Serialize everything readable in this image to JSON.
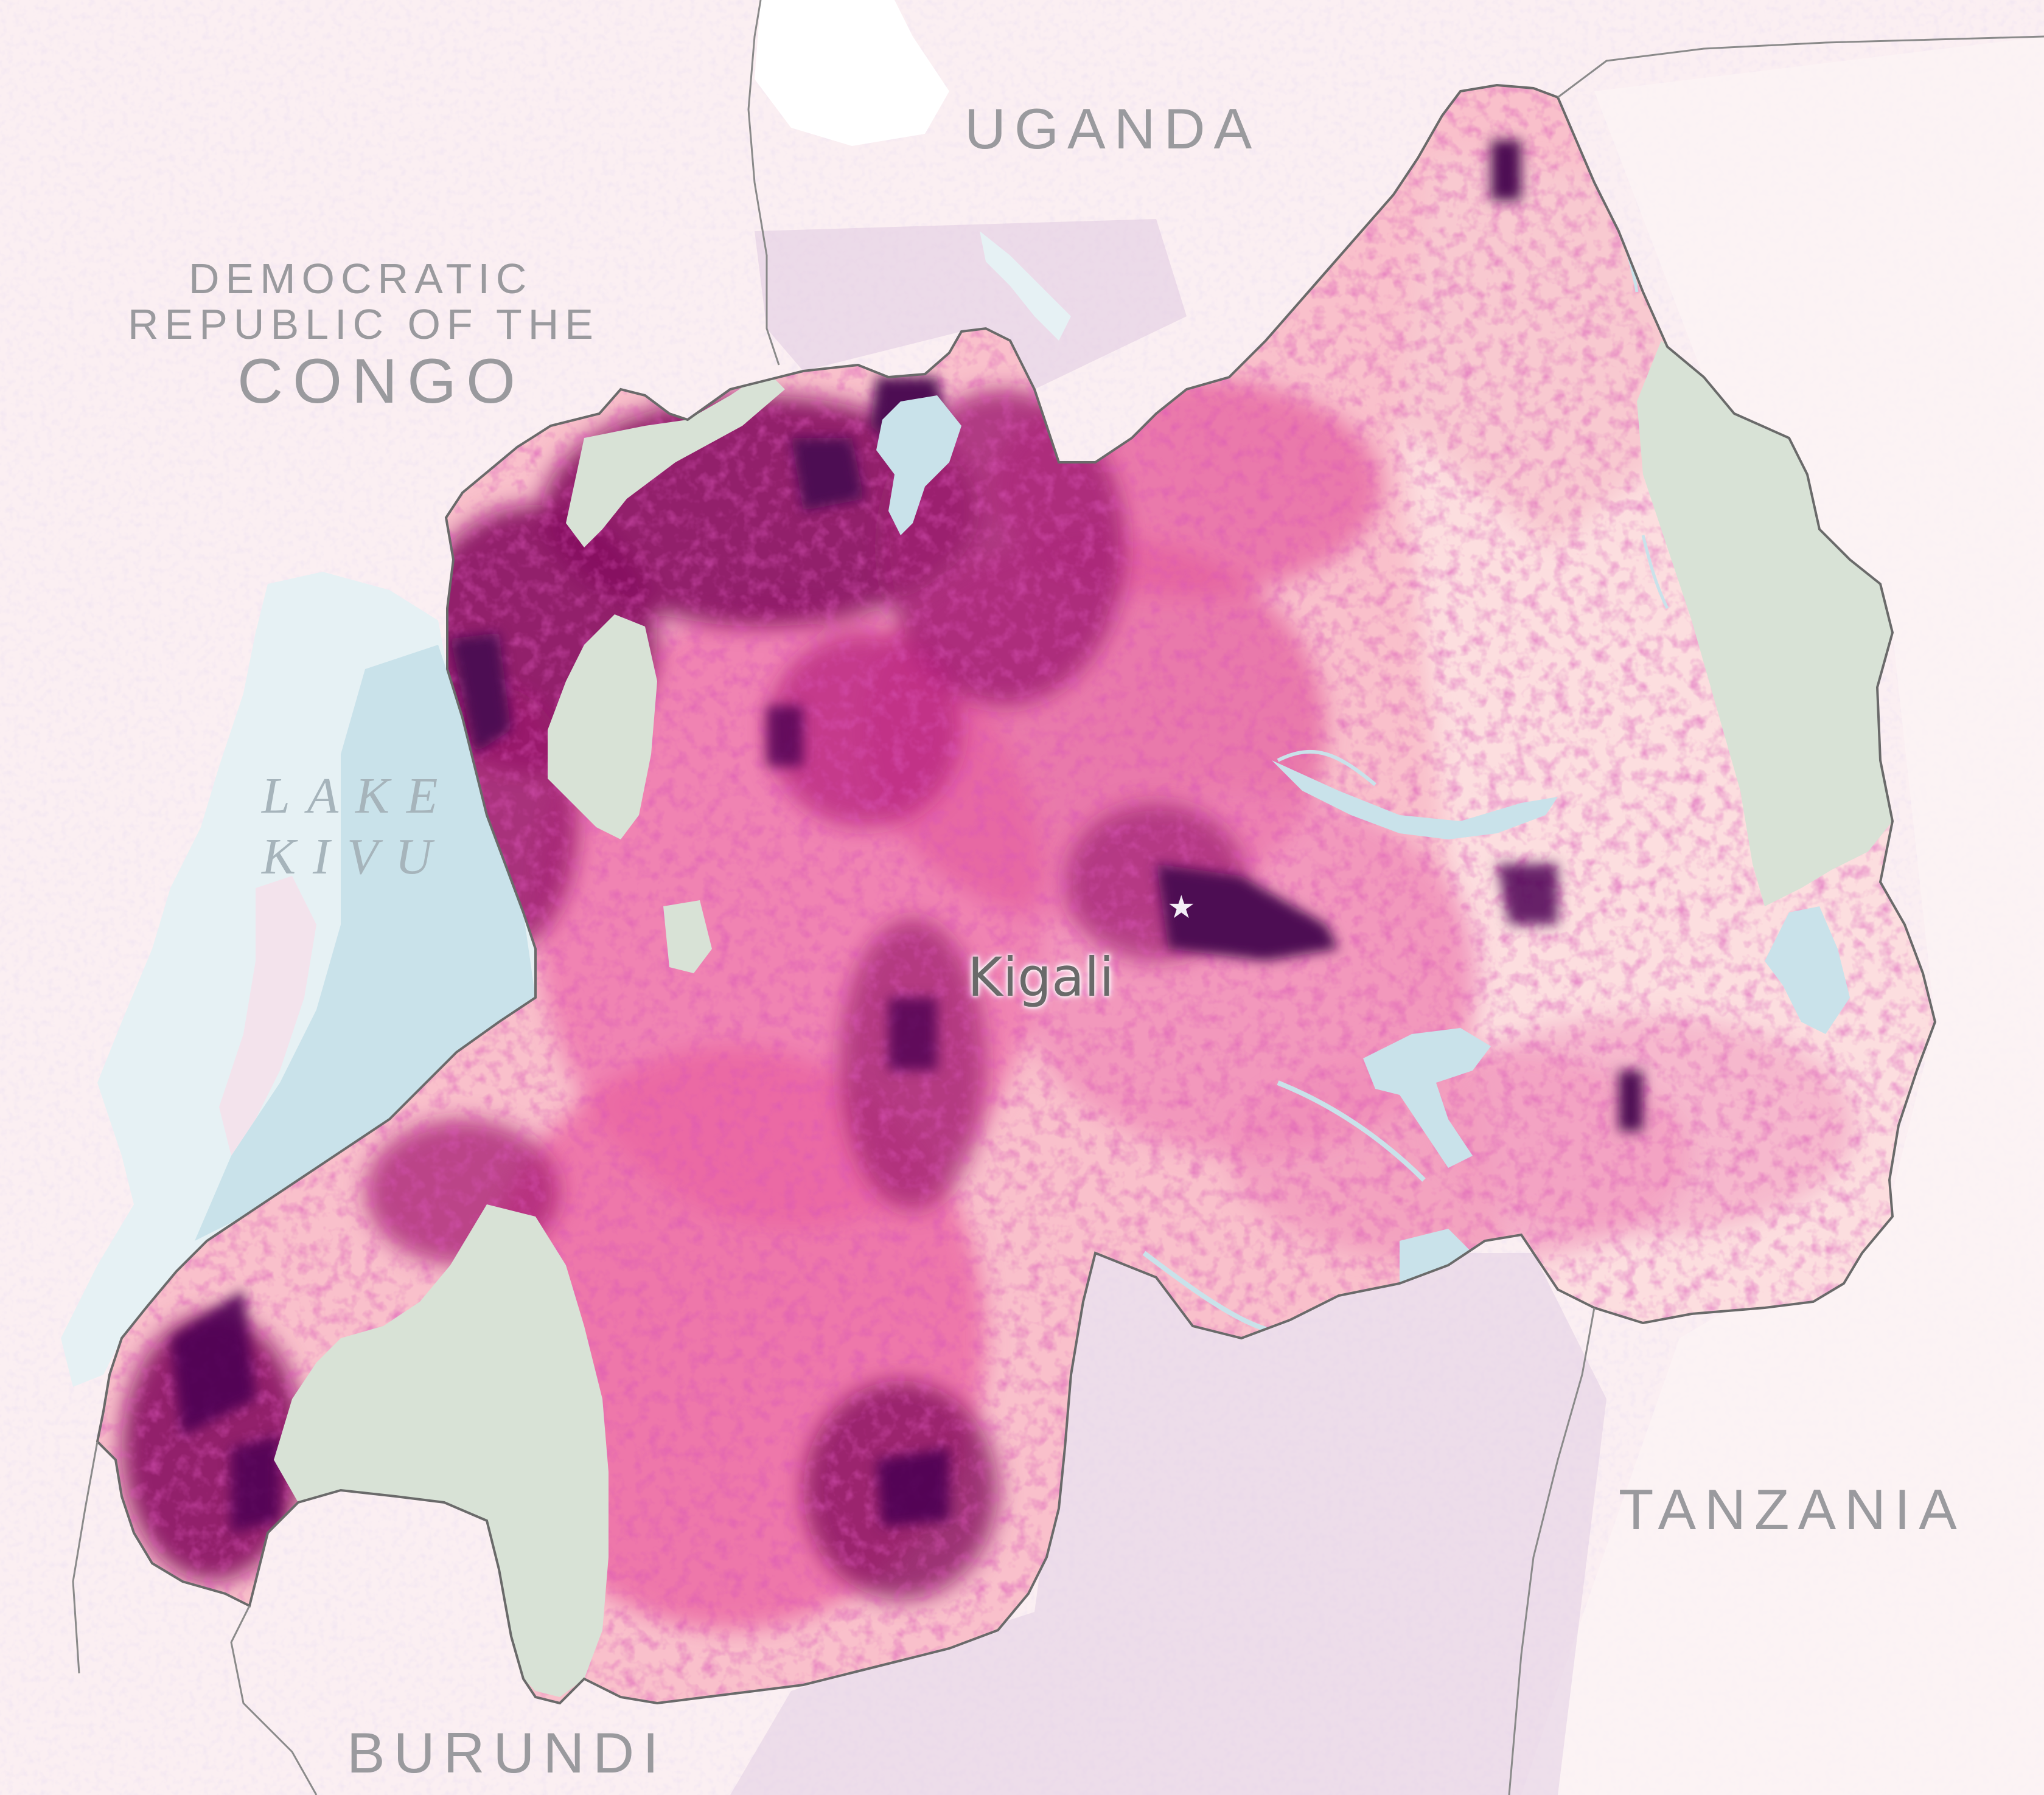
{
  "labels": {
    "uganda": "UGANDA",
    "drc_line1": "DEMOCRATIC",
    "drc_line2": "REPUBLIC OF THE",
    "drc_line3": "CONGO",
    "tanzania": "TANZANIA",
    "burundi": "BURUNDI",
    "lake_line1": "LAKE",
    "lake_line2": "KIVU",
    "capital": "Kigali"
  },
  "icons": {
    "capital_marker": "star-icon"
  },
  "colors": {
    "background": "#fbeff2",
    "neighbor_speckle": "#d9c4e0",
    "water": "#c9e2ea",
    "water_light": "#e6f1f4",
    "protected_area": "#d8e2d6",
    "border": "#6a6a6a",
    "density_low": "#fbd3d6",
    "density_mid": "#e8559f",
    "density_high": "#b2187a",
    "density_max": "#4d0753",
    "label_gray": "#9a9a9e"
  }
}
